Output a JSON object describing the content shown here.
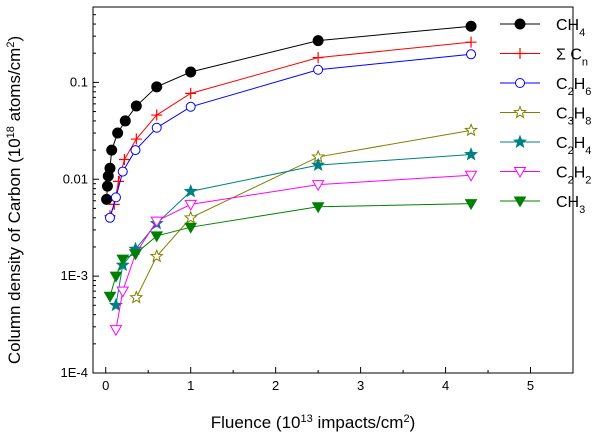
{
  "chart_data": {
    "type": "line",
    "title": "",
    "xlabel": {
      "base": "Fluence (10",
      "sup": "13",
      "rest": " impacts/cm",
      "sup2": "2",
      "end": ")"
    },
    "ylabel": {
      "base": "Column density of Carbon (10",
      "sup": "18",
      "rest": " atoms/cm",
      "sup2": "2",
      "end": ")"
    },
    "xlim": [
      -0.15,
      5.5
    ],
    "ylim": [
      0.0001,
      0.6
    ],
    "yscale": "log",
    "grid": false,
    "legend_position": "right",
    "x_ticks": [
      {
        "value": 0,
        "label": "0"
      },
      {
        "value": 1,
        "label": "1"
      },
      {
        "value": 2,
        "label": "2"
      },
      {
        "value": 3,
        "label": "3"
      },
      {
        "value": 4,
        "label": "4"
      },
      {
        "value": 5,
        "label": "5"
      }
    ],
    "y_ticks": [
      {
        "value": 0.0001,
        "label": "1E-4"
      },
      {
        "value": 0.001,
        "label": "1E-3"
      },
      {
        "value": 0.01,
        "label": "0.01"
      },
      {
        "value": 0.1,
        "label": "0.1"
      }
    ],
    "series": [
      {
        "name": "CH4",
        "label_parts": [
          {
            "t": "CH"
          },
          {
            "t": "4",
            "sub": true
          }
        ],
        "color": "#000000",
        "marker": "circle-filled",
        "x": [
          0.01,
          0.02,
          0.03,
          0.05,
          0.07,
          0.14,
          0.23,
          0.36,
          0.6,
          1.0,
          2.5,
          4.3
        ],
        "y": [
          0.0062,
          0.0085,
          0.0108,
          0.013,
          0.02,
          0.03,
          0.04,
          0.057,
          0.09,
          0.128,
          0.27,
          0.38
        ]
      },
      {
        "name": "Σ Cn",
        "label_parts": [
          {
            "t": "Σ C"
          },
          {
            "t": "n",
            "sub": true
          }
        ],
        "color": "#ff0000",
        "marker": "plus",
        "x": [
          0.05,
          0.1,
          0.15,
          0.22,
          0.36,
          0.6,
          1.0,
          2.5,
          4.3
        ],
        "y": [
          0.0042,
          0.0055,
          0.0095,
          0.016,
          0.026,
          0.046,
          0.077,
          0.18,
          0.26
        ]
      },
      {
        "name": "C2H6",
        "label_parts": [
          {
            "t": "C"
          },
          {
            "t": "2",
            "sub": true
          },
          {
            "t": "H"
          },
          {
            "t": "6",
            "sub": true
          }
        ],
        "color": "#0000ff",
        "marker": "circle-open",
        "x": [
          0.05,
          0.12,
          0.2,
          0.35,
          0.6,
          1.0,
          2.5,
          4.3
        ],
        "y": [
          0.004,
          0.0065,
          0.012,
          0.02,
          0.034,
          0.056,
          0.135,
          0.195
        ]
      },
      {
        "name": "C3H8",
        "label_parts": [
          {
            "t": "C"
          },
          {
            "t": "3",
            "sub": true
          },
          {
            "t": "H"
          },
          {
            "t": "8",
            "sub": true
          }
        ],
        "color": "#808000",
        "marker": "star-open",
        "x": [
          0.36,
          0.6,
          1.0,
          2.5,
          4.3
        ],
        "y": [
          0.0006,
          0.0016,
          0.004,
          0.017,
          0.032
        ]
      },
      {
        "name": "C2H4",
        "label_parts": [
          {
            "t": "C"
          },
          {
            "t": "2",
            "sub": true
          },
          {
            "t": "H"
          },
          {
            "t": "4",
            "sub": true
          }
        ],
        "color": "#008080",
        "marker": "star-filled",
        "x": [
          0.12,
          0.2,
          0.35,
          0.6,
          1.0,
          2.5,
          4.3
        ],
        "y": [
          0.0005,
          0.0013,
          0.0019,
          0.0035,
          0.0075,
          0.014,
          0.018
        ]
      },
      {
        "name": "C2H2",
        "label_parts": [
          {
            "t": "C"
          },
          {
            "t": "2",
            "sub": true
          },
          {
            "t": "H"
          },
          {
            "t": "2",
            "sub": true
          }
        ],
        "color": "#ff00ff",
        "marker": "triangle-down-open",
        "x": [
          0.12,
          0.2,
          0.35,
          0.6,
          1.0,
          2.5,
          4.3
        ],
        "y": [
          0.00028,
          0.0007,
          0.0017,
          0.0037,
          0.0055,
          0.0088,
          0.011
        ]
      },
      {
        "name": "CH3",
        "label_parts": [
          {
            "t": "CH"
          },
          {
            "t": "3",
            "sub": true
          }
        ],
        "color": "#008000",
        "marker": "triangle-down-filled",
        "x": [
          0.05,
          0.12,
          0.2,
          0.35,
          0.6,
          1.0,
          2.5,
          4.3
        ],
        "y": [
          0.00062,
          0.001,
          0.0015,
          0.0017,
          0.0026,
          0.0032,
          0.0052,
          0.0056
        ]
      }
    ]
  }
}
